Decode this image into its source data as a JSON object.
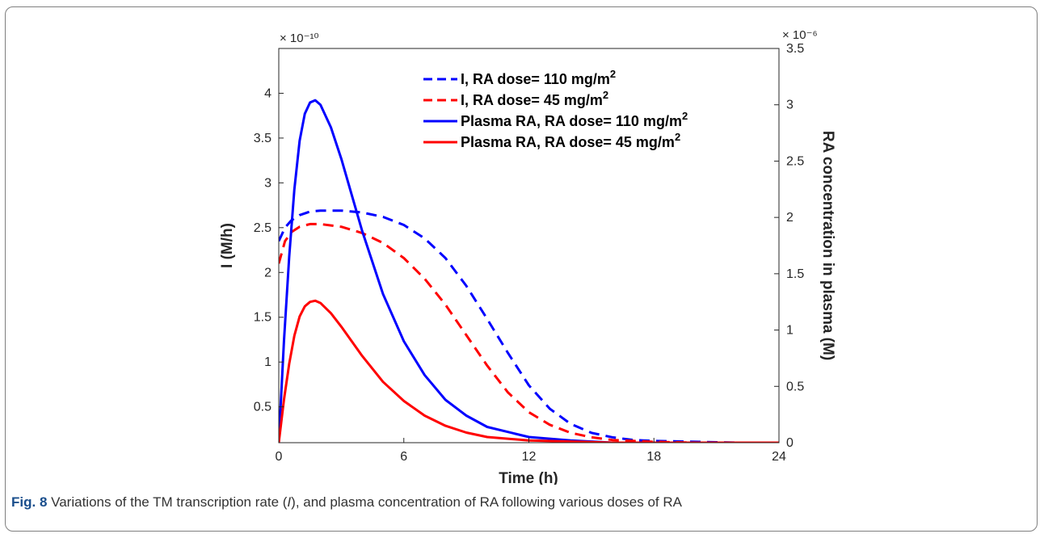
{
  "caption": {
    "label": "Fig. 8",
    "text_before": "Variations of the TM transcription rate (",
    "italic": "I",
    "text_after": "), and plasma concentration of RA following various doses of RA"
  },
  "chart_data": {
    "type": "line",
    "xlabel": "Time (h)",
    "ylabel_left": "I (M/h)",
    "ylabel_right": "RA concentration in plasma (M)",
    "exponent_left": "× 10⁻¹⁰",
    "exponent_right": "× 10⁻⁶",
    "xlim": [
      0,
      24
    ],
    "ylim_left": [
      0.1,
      4.5
    ],
    "ylim_right": [
      0,
      3.5
    ],
    "xticks": [
      0,
      6,
      12,
      18,
      24
    ],
    "yticks_left": [
      0.5,
      1,
      1.5,
      2,
      2.5,
      3,
      3.5,
      4
    ],
    "yticks_right": [
      0,
      0.5,
      1,
      1.5,
      2,
      2.5,
      3,
      3.5
    ],
    "legend_position": "top-right",
    "colors": {
      "blue": "#0000ff",
      "red": "#ff0000"
    },
    "series": [
      {
        "name": "I, RA dose= 110 mg/m",
        "superscript": "2",
        "axis": "left",
        "style": "dashed",
        "color": "#0000ff",
        "x": [
          0,
          0.3,
          0.6,
          1,
          1.5,
          2,
          3,
          4,
          5,
          6,
          7,
          8,
          9,
          10,
          11,
          12,
          13,
          14,
          15,
          16,
          17,
          18,
          20,
          22,
          24
        ],
        "y": [
          2.35,
          2.5,
          2.58,
          2.64,
          2.68,
          2.69,
          2.69,
          2.67,
          2.62,
          2.53,
          2.38,
          2.16,
          1.85,
          1.48,
          1.1,
          0.74,
          0.48,
          0.31,
          0.21,
          0.16,
          0.13,
          0.12,
          0.11,
          0.1,
          0.1
        ]
      },
      {
        "name": "I, RA dose= 45 mg/m",
        "superscript": "2",
        "axis": "left",
        "style": "dashed",
        "color": "#ff0000",
        "x": [
          0,
          0.3,
          0.6,
          1,
          1.5,
          2,
          3,
          4,
          5,
          6,
          7,
          8,
          9,
          10,
          11,
          12,
          13,
          14,
          15,
          16,
          17,
          18,
          20,
          22,
          24
        ],
        "y": [
          2.1,
          2.35,
          2.45,
          2.51,
          2.54,
          2.54,
          2.51,
          2.44,
          2.33,
          2.16,
          1.93,
          1.64,
          1.3,
          0.96,
          0.66,
          0.44,
          0.3,
          0.21,
          0.16,
          0.13,
          0.12,
          0.11,
          0.1,
          0.1,
          0.1
        ]
      },
      {
        "name": "Plasma RA, RA dose= 110 mg/m",
        "superscript": "2",
        "axis": "right",
        "style": "solid",
        "color": "#0000ff",
        "x": [
          0,
          0.25,
          0.5,
          0.75,
          1,
          1.25,
          1.5,
          1.75,
          2,
          2.5,
          3,
          3.5,
          4,
          5,
          6,
          7,
          8,
          9,
          10,
          12,
          14,
          16,
          20,
          24
        ],
        "y": [
          0,
          0.9,
          1.65,
          2.25,
          2.68,
          2.92,
          3.02,
          3.04,
          3.0,
          2.8,
          2.52,
          2.2,
          1.88,
          1.32,
          0.9,
          0.6,
          0.38,
          0.24,
          0.14,
          0.05,
          0.02,
          0.0,
          0.0,
          0.0
        ]
      },
      {
        "name": "Plasma RA, RA dose= 45 mg/m",
        "superscript": "2",
        "axis": "right",
        "style": "solid",
        "color": "#ff0000",
        "x": [
          0,
          0.25,
          0.5,
          0.75,
          1,
          1.25,
          1.5,
          1.75,
          2,
          2.5,
          3,
          3.5,
          4,
          5,
          6,
          7,
          8,
          9,
          10,
          12,
          14,
          16,
          20,
          24
        ],
        "y": [
          0,
          0.38,
          0.7,
          0.95,
          1.12,
          1.21,
          1.25,
          1.26,
          1.24,
          1.15,
          1.03,
          0.9,
          0.77,
          0.54,
          0.37,
          0.24,
          0.15,
          0.09,
          0.05,
          0.02,
          0.01,
          0.0,
          0.0,
          0.0
        ]
      }
    ]
  }
}
